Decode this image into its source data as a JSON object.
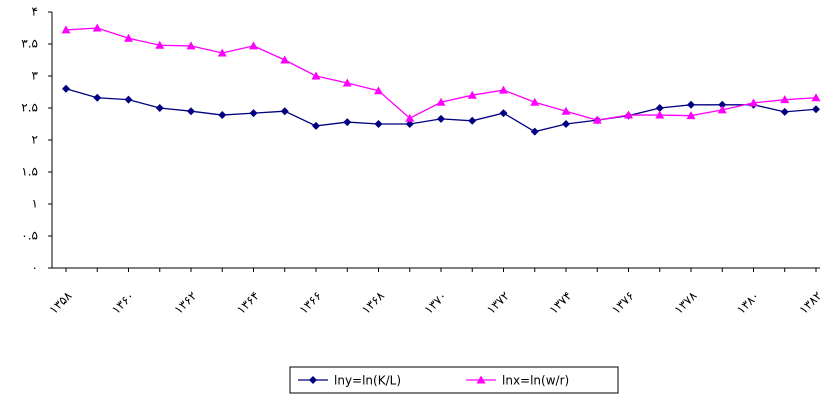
{
  "chart_data": {
    "type": "line",
    "categories": [
      "۱۳۵۸",
      null,
      "۱۳۶۰",
      null,
      "۱۳۶۲",
      null,
      "۱۳۶۴",
      null,
      "۱۳۶۶",
      null,
      "۱۳۶۸",
      null,
      "۱۳۷۰",
      null,
      "۱۳۷۲",
      null,
      "۱۳۷۴",
      null,
      "۱۳۷۶",
      null,
      "۱۳۷۸",
      null,
      "۱۳۸۰",
      null,
      "۱۳۸۲"
    ],
    "series": [
      {
        "name": "lny=ln(K/L)",
        "color": "#000080",
        "marker": "diamond",
        "values": [
          2.8,
          2.66,
          2.63,
          2.5,
          2.45,
          2.39,
          2.42,
          2.45,
          2.22,
          2.28,
          2.25,
          2.25,
          2.33,
          2.3,
          2.42,
          2.13,
          2.25,
          2.31,
          2.38,
          2.5,
          2.55,
          2.55,
          2.55,
          2.44,
          2.48
        ]
      },
      {
        "name": "lnx=ln(w/r)",
        "color": "#ff00ff",
        "marker": "triangle",
        "values": [
          3.72,
          3.75,
          3.59,
          3.48,
          3.47,
          3.36,
          3.47,
          3.25,
          3.0,
          2.89,
          2.77,
          2.34,
          2.59,
          2.7,
          2.78,
          2.59,
          2.45,
          2.31,
          2.39,
          2.39,
          2.38,
          2.47,
          2.58,
          2.63,
          2.66
        ]
      }
    ],
    "ylim": [
      0,
      4
    ],
    "yticks": [
      {
        "value": 0,
        "label": "۰"
      },
      {
        "value": 0.5,
        "label": "۰.۵"
      },
      {
        "value": 1,
        "label": "۱"
      },
      {
        "value": 1.5,
        "label": "۱.۵"
      },
      {
        "value": 2,
        "label": "۲"
      },
      {
        "value": 2.5,
        "label": "۲.۵"
      },
      {
        "value": 3,
        "label": "۳"
      },
      {
        "value": 3.5,
        "label": "۳.۵"
      },
      {
        "value": 4,
        "label": "۴"
      }
    ],
    "grid": false,
    "legend": "bottom"
  }
}
